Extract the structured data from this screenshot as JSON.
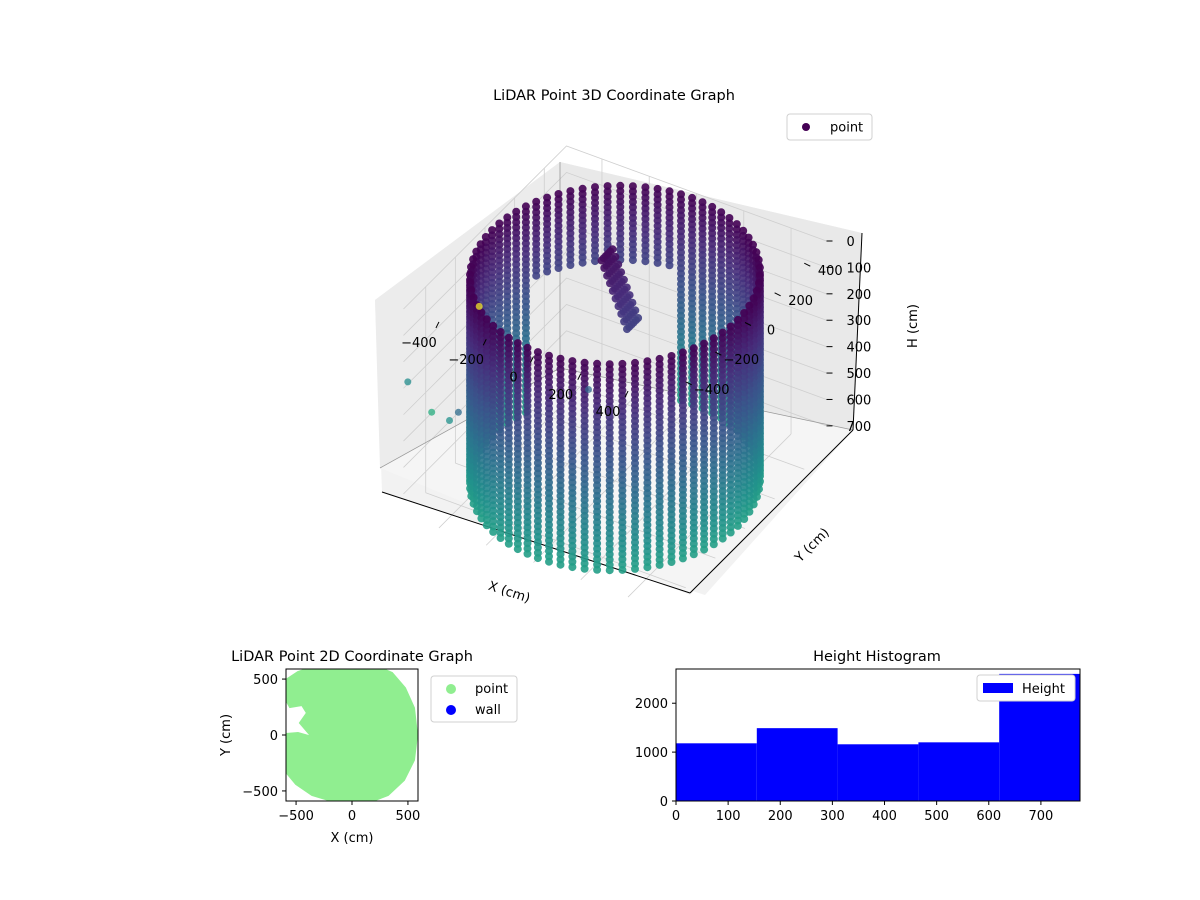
{
  "chart_data": [
    {
      "type": "scatter3d",
      "title": "LiDAR Point 3D Coordinate Graph",
      "xlabel": "X (cm)",
      "ylabel": "Y (cm)",
      "zlabel": "H (cm)",
      "xticks": [
        "−400",
        "−200",
        "0",
        "200",
        "400"
      ],
      "yticks": [
        "−400",
        "−200",
        "0",
        "200",
        "400"
      ],
      "zticks": [
        "0",
        "100",
        "200",
        "300",
        "400",
        "500",
        "600",
        "700"
      ],
      "xlim": [
        -550,
        550
      ],
      "ylim": [
        -550,
        550
      ],
      "zlim": [
        0,
        780
      ],
      "zaxis_inverted": true,
      "colormap": "viridis",
      "legend": {
        "labels": [
          "point"
        ],
        "position": "upper right"
      },
      "description_shape": "cylindrical wall of points, radius ~550 cm, heights 0-780 cm",
      "color_scale": [
        "#440154",
        "#3b528b",
        "#21918c",
        "#5ec962",
        "#fde725"
      ],
      "series_colors": {
        "point": "#440154"
      }
    },
    {
      "type": "scatter",
      "title": "LiDAR Point 2D Coordinate Graph",
      "xlabel": "X (cm)",
      "ylabel": "Y (cm)",
      "xticks": [
        "−500",
        "0",
        "500"
      ],
      "yticks": [
        "−500",
        "0",
        "500"
      ],
      "xlim": [
        -590,
        590
      ],
      "ylim": [
        -590,
        590
      ],
      "series": [
        {
          "name": "point",
          "color": "#90ee90"
        },
        {
          "name": "wall",
          "color": "#0000ff"
        }
      ],
      "legend": {
        "labels": [
          "point",
          "wall"
        ],
        "position": "outside right"
      }
    },
    {
      "type": "bar",
      "title": "Height Histogram",
      "xticks": [
        "0",
        "100",
        "200",
        "300",
        "400",
        "500",
        "600",
        "700"
      ],
      "yticks": [
        "0",
        "1000",
        "2000"
      ],
      "bin_edges": [
        0,
        155,
        310,
        465,
        620,
        775
      ],
      "values": [
        1180,
        1490,
        1160,
        1200,
        2600
      ],
      "xlim": [
        0,
        775
      ],
      "ylim": [
        0,
        2700
      ],
      "color": "#0000ff",
      "series": [
        {
          "name": "Height",
          "color": "#0000ff"
        }
      ],
      "legend": {
        "labels": [
          "Height"
        ],
        "position": "upper right"
      }
    }
  ]
}
